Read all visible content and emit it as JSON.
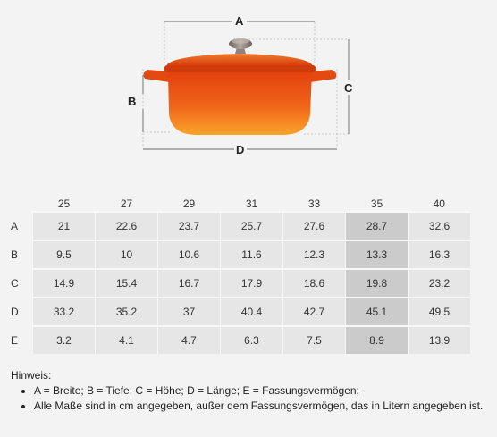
{
  "dimension_labels": {
    "a": "A",
    "b": "B",
    "c": "C",
    "d": "D"
  },
  "colors": {
    "pot_top": "#e8450f",
    "pot_mid": "#f06a1a",
    "pot_bottom": "#f9a62a",
    "knob": "#8a7e78",
    "highlight": "#cbcbcb",
    "cell": "#e6e6e6"
  },
  "table": {
    "columns": [
      "25",
      "27",
      "29",
      "31",
      "33",
      "35",
      "40"
    ],
    "highlight_column_index": 5,
    "rows": [
      {
        "label": "A",
        "values": [
          "21",
          "22.6",
          "23.7",
          "25.7",
          "27.6",
          "28.7",
          "32.6"
        ]
      },
      {
        "label": "B",
        "values": [
          "9.5",
          "10",
          "10.6",
          "11.6",
          "12.3",
          "13.3",
          "16.3"
        ]
      },
      {
        "label": "C",
        "values": [
          "14.9",
          "15.4",
          "16.7",
          "17.9",
          "18.6",
          "19.8",
          "23.2"
        ]
      },
      {
        "label": "D",
        "values": [
          "33.2",
          "35.2",
          "37",
          "40.4",
          "42.7",
          "45.1",
          "49.5"
        ]
      },
      {
        "label": "E",
        "values": [
          "3.2",
          "4.1",
          "4.7",
          "6.3",
          "7.5",
          "8.9",
          "13.9"
        ]
      }
    ]
  },
  "notes": {
    "heading": "Hinweis:",
    "items": [
      "A = Breite; B = Tiefe; C = Höhe; D = Länge; E = Fassungsvermögen;",
      "Alle Maße sind in cm angegeben, außer dem Fassungsvermögen, das in Litern angegeben ist."
    ]
  }
}
